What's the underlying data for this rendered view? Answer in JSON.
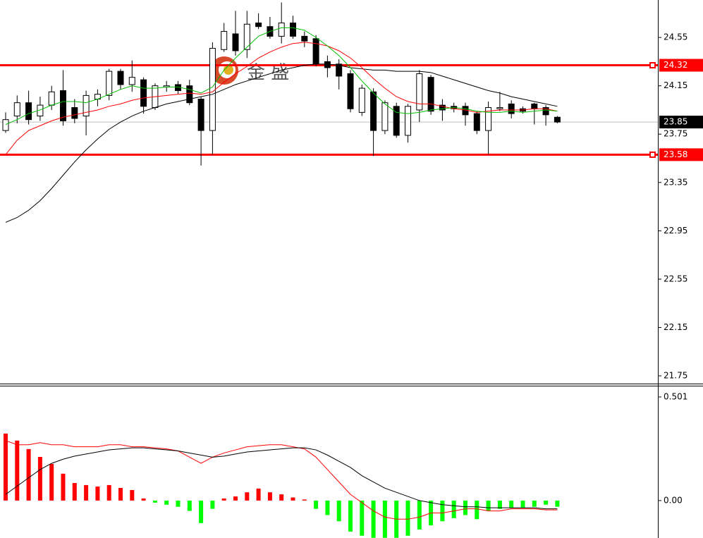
{
  "chart_data": [
    {
      "type": "candlestick",
      "watermark": "金 盛",
      "open": [
        23.78,
        23.9,
        24.01,
        23.9,
        23.99,
        24.11,
        23.97,
        23.9,
        24.04,
        24.07,
        24.27,
        24.16,
        24.2,
        23.97,
        24.14,
        24.16,
        24.15,
        24.04,
        23.78,
        24.45,
        24.58,
        24.45,
        24.67,
        24.64,
        24.56,
        24.67,
        24.56,
        24.54,
        24.35,
        24.33,
        24.25,
        23.93,
        24.1,
        23.78,
        23.98,
        23.74,
        23.95,
        24.22,
        23.99,
        23.98,
        23.98,
        23.92,
        23.78,
        23.96,
        24.0,
        23.96,
        24.0,
        23.97,
        23.89
      ],
      "high": [
        23.93,
        24.07,
        24.11,
        24.06,
        24.15,
        24.28,
        24.04,
        24.11,
        24.12,
        24.29,
        24.29,
        24.36,
        24.22,
        24.17,
        24.19,
        24.19,
        24.2,
        24.06,
        24.51,
        24.67,
        24.77,
        24.77,
        24.75,
        24.72,
        24.84,
        24.73,
        24.6,
        24.57,
        24.4,
        24.37,
        24.28,
        24.16,
        24.13,
        24.03,
        24.01,
        24.0,
        24.28,
        24.24,
        24.04,
        24.01,
        24.01,
        23.94,
        24.02,
        24.1,
        24.03,
        23.98,
        24.01,
        23.99,
        23.9
      ],
      "low": [
        23.76,
        23.84,
        23.83,
        23.86,
        23.95,
        23.82,
        23.84,
        23.74,
        23.98,
        24.03,
        24.12,
        24.1,
        23.92,
        23.95,
        24.1,
        24.08,
        23.99,
        23.49,
        23.58,
        24.43,
        24.4,
        24.38,
        24.62,
        24.54,
        24.5,
        24.54,
        24.47,
        24.31,
        24.22,
        24.12,
        23.93,
        23.9,
        23.57,
        23.75,
        23.72,
        23.68,
        23.85,
        23.91,
        23.86,
        23.93,
        23.82,
        23.75,
        23.58,
        23.94,
        23.88,
        23.92,
        23.83,
        23.82,
        23.84
      ],
      "close": [
        23.87,
        24.01,
        23.87,
        23.99,
        24.1,
        23.86,
        23.88,
        24.07,
        24.08,
        24.27,
        24.16,
        24.22,
        23.98,
        24.15,
        24.15,
        24.11,
        24.01,
        23.78,
        24.46,
        24.6,
        24.44,
        24.66,
        24.64,
        24.56,
        24.67,
        24.56,
        24.52,
        24.33,
        24.3,
        24.23,
        23.96,
        24.13,
        23.78,
        24.01,
        23.74,
        23.98,
        24.25,
        23.94,
        23.95,
        23.96,
        23.91,
        23.78,
        23.97,
        23.97,
        23.92,
        23.94,
        23.96,
        23.91,
        23.85
      ],
      "moving_averages": [
        {
          "color": "#000000",
          "values": [
            23.02,
            23.06,
            23.12,
            23.2,
            23.3,
            23.41,
            23.52,
            23.62,
            23.71,
            23.79,
            23.85,
            23.9,
            23.94,
            23.97,
            24.0,
            24.02,
            24.04,
            24.06,
            24.08,
            24.12,
            24.16,
            24.19,
            24.22,
            24.25,
            24.28,
            24.3,
            24.32,
            24.33,
            24.33,
            24.32,
            24.3,
            24.29,
            24.28,
            24.28,
            24.27,
            24.27,
            24.27,
            24.26,
            24.23,
            24.2,
            24.17,
            24.14,
            24.11,
            24.09,
            24.06,
            24.04,
            24.02,
            24.0,
            23.98
          ]
        },
        {
          "color": "#ff0000",
          "values": [
            23.58,
            23.7,
            23.78,
            23.82,
            23.86,
            23.89,
            23.91,
            23.93,
            23.95,
            23.98,
            24.0,
            24.03,
            24.05,
            24.06,
            24.07,
            24.08,
            24.09,
            24.08,
            24.1,
            24.18,
            24.25,
            24.31,
            24.38,
            24.43,
            24.47,
            24.5,
            24.51,
            24.5,
            24.48,
            24.44,
            24.38,
            24.3,
            24.21,
            24.13,
            24.06,
            24.02,
            24.0,
            24.0,
            23.98,
            23.96,
            23.95,
            23.93,
            23.94,
            23.95,
            23.95,
            23.95,
            23.96,
            23.96,
            23.94
          ]
        },
        {
          "color": "#00c000",
          "values": [
            23.83,
            23.87,
            23.92,
            23.95,
            23.99,
            24.02,
            24.02,
            24.01,
            24.04,
            24.08,
            24.12,
            24.15,
            24.13,
            24.13,
            24.14,
            24.14,
            24.12,
            24.09,
            24.14,
            24.28,
            24.38,
            24.47,
            24.56,
            24.6,
            24.63,
            24.63,
            24.61,
            24.55,
            24.48,
            24.4,
            24.3,
            24.19,
            24.09,
            24.0,
            23.93,
            23.92,
            23.93,
            23.95,
            23.96,
            23.97,
            23.96,
            23.94,
            23.93,
            23.93,
            23.94,
            23.93,
            23.94,
            23.95,
            23.94
          ]
        }
      ],
      "levels": [
        {
          "value": 24.32,
          "color": "#ff0000"
        },
        {
          "value": 23.58,
          "color": "#ff0000"
        }
      ],
      "current_price": 23.85,
      "ylim": [
        21.68,
        24.86
      ],
      "yticks": [
        24.55,
        24.15,
        23.75,
        23.35,
        22.95,
        22.55,
        22.15,
        21.75
      ]
    },
    {
      "type": "macd",
      "histogram": {
        "positive_color": "#ff0000",
        "negative_color": "#00ff00",
        "values": [
          0.324,
          0.29,
          0.249,
          0.211,
          0.177,
          0.13,
          0.085,
          0.075,
          0.068,
          0.075,
          0.061,
          0.051,
          0.01,
          -0.01,
          -0.02,
          -0.03,
          -0.05,
          -0.109,
          -0.04,
          0.01,
          0.02,
          0.04,
          0.058,
          0.04,
          0.03,
          0.015,
          0.005,
          -0.04,
          -0.07,
          -0.1,
          -0.15,
          -0.17,
          -0.18,
          -0.18,
          -0.18,
          -0.17,
          -0.14,
          -0.12,
          -0.1,
          -0.085,
          -0.07,
          -0.09,
          -0.05,
          -0.04,
          -0.035,
          -0.035,
          -0.03,
          -0.02,
          -0.03
        ]
      },
      "lines": [
        {
          "color": "#ff0000",
          "values": [
            0.29,
            0.27,
            0.27,
            0.28,
            0.27,
            0.27,
            0.26,
            0.26,
            0.26,
            0.27,
            0.27,
            0.26,
            0.26,
            0.255,
            0.25,
            0.24,
            0.21,
            0.18,
            0.21,
            0.23,
            0.245,
            0.26,
            0.265,
            0.27,
            0.27,
            0.26,
            0.25,
            0.21,
            0.15,
            0.09,
            0.03,
            -0.01,
            -0.05,
            -0.08,
            -0.09,
            -0.09,
            -0.08,
            -0.06,
            -0.06,
            -0.05,
            -0.04,
            -0.04,
            -0.05,
            -0.05,
            -0.04,
            -0.04,
            -0.04,
            -0.045,
            -0.045
          ]
        },
        {
          "color": "#000000",
          "values": [
            0.03,
            0.07,
            0.11,
            0.15,
            0.18,
            0.2,
            0.215,
            0.225,
            0.235,
            0.245,
            0.25,
            0.255,
            0.255,
            0.25,
            0.245,
            0.24,
            0.23,
            0.22,
            0.21,
            0.215,
            0.225,
            0.235,
            0.24,
            0.245,
            0.25,
            0.255,
            0.255,
            0.245,
            0.22,
            0.19,
            0.16,
            0.12,
            0.09,
            0.06,
            0.04,
            0.02,
            0.0,
            -0.01,
            -0.02,
            -0.025,
            -0.03,
            -0.03,
            -0.035,
            -0.035,
            -0.035,
            -0.035,
            -0.035,
            -0.04,
            -0.04
          ]
        }
      ],
      "ylim": [
        -0.181,
        0.552
      ],
      "yticks": [
        0.501,
        {
          "value": 0,
          "label": "0.00"
        }
      ]
    }
  ]
}
